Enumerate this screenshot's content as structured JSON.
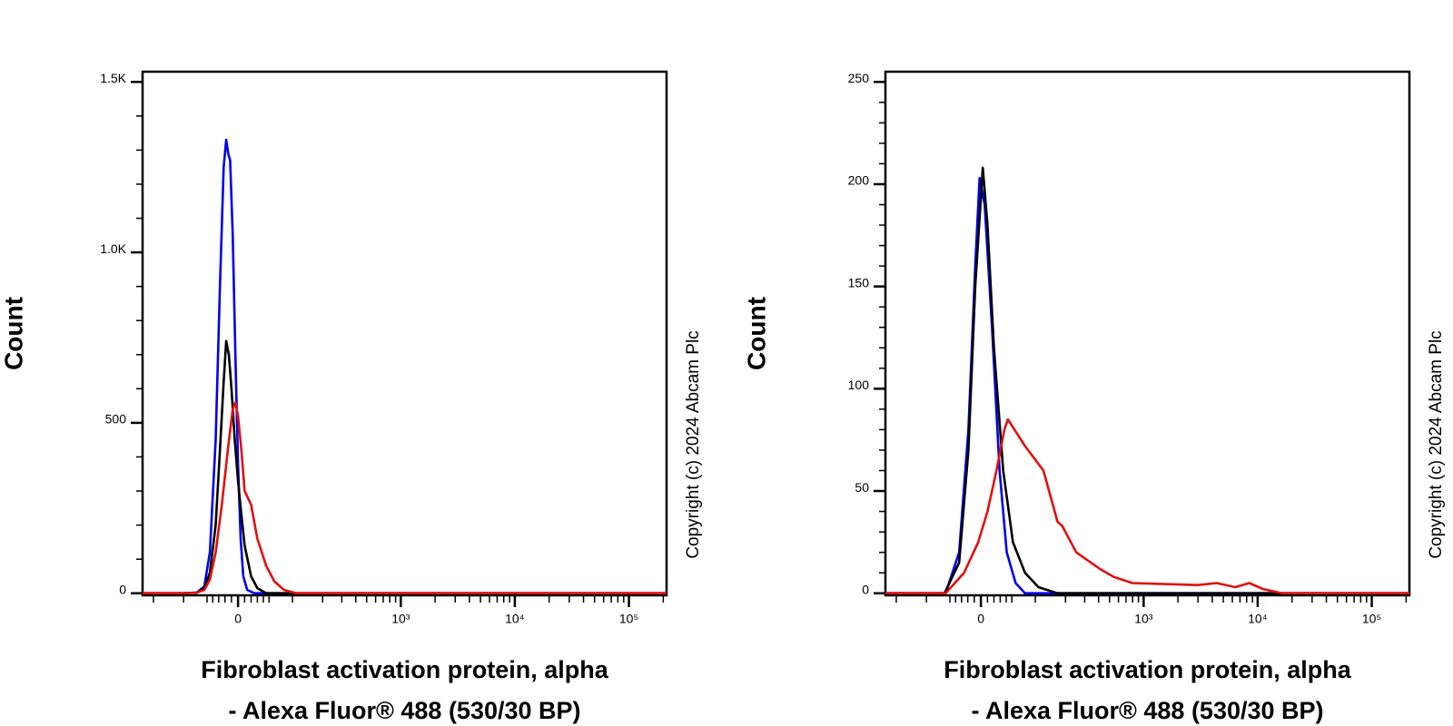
{
  "chart_data": [
    {
      "type": "line",
      "ylabel": "Count",
      "xlabel": [
        "Fibroblast activation protein, alpha",
        "- Alexa Fluor® 488 (530/30 BP)"
      ],
      "copyright": "Copyright (c) 2024 Abcam Plc",
      "xscale": "biexponential",
      "x_linear_width": 75,
      "xlim": [
        -252,
        213800
      ],
      "ylim": [
        -6,
        1530
      ],
      "xticks": [
        0,
        {
          "value": 1000,
          "label": "10³"
        },
        {
          "value": 10000,
          "label": "10⁴"
        },
        {
          "value": 100000,
          "label": "10⁵"
        }
      ],
      "xminorticks": [
        -200,
        -100,
        -50,
        -40,
        -30,
        -20,
        -10,
        10,
        20,
        30,
        40,
        50,
        100,
        200,
        300,
        400,
        500,
        600,
        700,
        800,
        900,
        2000,
        3000,
        4000,
        5000,
        6000,
        7000,
        8000,
        9000,
        20000,
        30000,
        40000,
        50000,
        60000,
        70000,
        80000,
        90000,
        200000
      ],
      "yticks": [
        0,
        500,
        {
          "value": 1000,
          "label": "1.0K"
        },
        {
          "value": 1500,
          "label": "1.5K"
        }
      ],
      "yminorticks": [
        100,
        200,
        300,
        400,
        600,
        700,
        800,
        900,
        1100,
        1200,
        1300,
        1400
      ],
      "series": [
        {
          "color": "#0000ee",
          "x": [
            -252,
            -100,
            -70,
            -55,
            -45,
            -35,
            -28,
            -22,
            -18,
            -15,
            -12,
            -8,
            -4,
            0,
            4,
            8,
            14,
            25,
            213800
          ],
          "values": [
            0,
            0,
            2,
            20,
            120,
            450,
            900,
            1250,
            1330,
            1290,
            1270,
            1050,
            700,
            380,
            160,
            50,
            10,
            0,
            0
          ]
        },
        {
          "color": "#000000",
          "x": [
            -252,
            -100,
            -70,
            -55,
            -45,
            -35,
            -28,
            -22,
            -18,
            -14,
            -10,
            -5,
            0,
            5,
            10,
            20,
            30,
            45,
            213800
          ],
          "values": [
            0,
            0,
            2,
            15,
            60,
            200,
            420,
            620,
            740,
            700,
            600,
            450,
            330,
            230,
            140,
            50,
            15,
            0,
            0
          ]
        },
        {
          "color": "#e01010",
          "x": [
            -252,
            -100,
            -70,
            -55,
            -45,
            -35,
            -25,
            -15,
            -8,
            -4,
            0,
            5,
            10,
            20,
            30,
            45,
            60,
            80,
            110,
            213800
          ],
          "values": [
            0,
            0,
            2,
            10,
            40,
            120,
            260,
            430,
            540,
            560,
            520,
            420,
            300,
            260,
            160,
            80,
            35,
            10,
            0,
            0
          ]
        }
      ]
    },
    {
      "type": "line",
      "ylabel": "Count",
      "xlabel": [
        "Fibroblast activation protein, alpha",
        "- Alexa Fluor® 488 (530/30 BP)"
      ],
      "copyright": "Copyright (c) 2024 Abcam Plc",
      "xscale": "biexponential",
      "x_linear_width": 75,
      "xlim": [
        -252,
        213800
      ],
      "ylim": [
        -1,
        255
      ],
      "xticks": [
        0,
        {
          "value": 1000,
          "label": "10³"
        },
        {
          "value": 10000,
          "label": "10⁴"
        },
        {
          "value": 100000,
          "label": "10⁵"
        }
      ],
      "xminorticks": [
        -200,
        -100,
        -50,
        -40,
        -30,
        -20,
        -10,
        10,
        20,
        30,
        40,
        50,
        100,
        200,
        300,
        400,
        500,
        600,
        700,
        800,
        900,
        2000,
        3000,
        4000,
        5000,
        6000,
        7000,
        8000,
        9000,
        20000,
        30000,
        40000,
        50000,
        60000,
        70000,
        80000,
        90000,
        200000
      ],
      "yticks": [
        0,
        50,
        100,
        150,
        200,
        250
      ],
      "yminorticks": [
        10,
        20,
        30,
        40,
        60,
        70,
        80,
        90,
        110,
        120,
        130,
        140,
        160,
        170,
        180,
        190,
        210,
        220,
        230,
        240
      ],
      "series": [
        {
          "color": "#0000ee",
          "x": [
            -252,
            -58,
            -34,
            -19,
            -8.5,
            -2,
            5.7,
            17,
            29,
            41,
            57,
            76,
            213800
          ],
          "values": [
            0,
            0,
            20,
            80,
            160,
            203,
            190,
            130,
            60,
            20,
            5,
            0,
            0
          ]
        },
        {
          "color": "#000000",
          "x": [
            -252,
            -60,
            -34,
            -19,
            -8.5,
            2.8,
            10,
            20,
            35,
            52,
            76,
            108,
            168,
            213800
          ],
          "values": [
            0,
            0,
            15,
            70,
            150,
            208,
            180,
            120,
            60,
            25,
            10,
            3,
            0,
            0
          ]
        },
        {
          "color": "#e01010",
          "x": [
            -252,
            -58,
            -26,
            -4,
            10,
            24,
            37,
            43,
            76,
            122,
            168,
            186,
            252,
            409,
            545,
            797,
            2995,
            4366,
            6370,
            8440,
            11200,
            16300,
            213800
          ],
          "values": [
            0,
            0,
            10,
            25,
            40,
            60,
            80,
            85,
            72,
            60,
            35,
            33,
            20,
            12,
            8,
            5,
            4,
            5,
            3,
            5,
            2,
            0,
            0
          ]
        }
      ]
    }
  ]
}
